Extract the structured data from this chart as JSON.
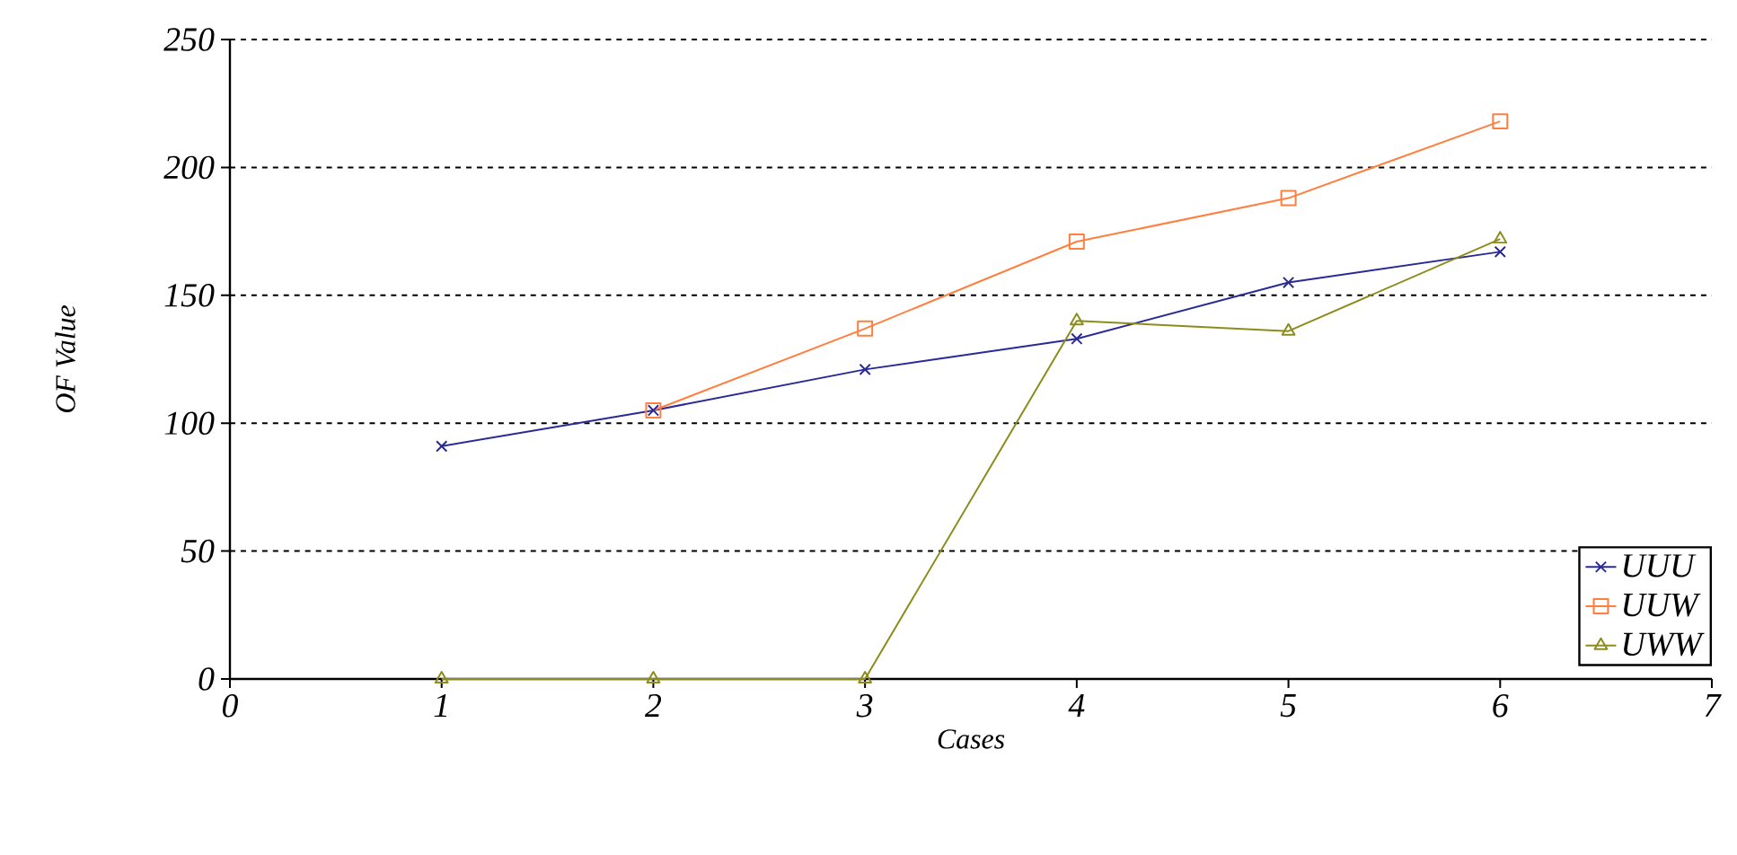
{
  "chart_data": {
    "type": "line",
    "xlabel": "Cases",
    "ylabel": "OF Value",
    "x": [
      1,
      2,
      3,
      4,
      5,
      6
    ],
    "series": [
      {
        "name": "UUU",
        "color": "#2a2a96",
        "marker": "cross",
        "values": [
          91,
          105,
          121,
          133,
          155,
          167
        ]
      },
      {
        "name": "UUW",
        "color": "#ff7f3f",
        "marker": "square",
        "values": [
          null,
          105,
          137,
          171,
          188,
          218
        ]
      },
      {
        "name": "UWW",
        "color": "#8c8c1c",
        "marker": "triangle",
        "values": [
          0,
          0,
          0,
          140,
          136,
          172
        ]
      }
    ],
    "xlim": [
      0,
      7
    ],
    "xticks": [
      0,
      1,
      2,
      3,
      4,
      5,
      6,
      7
    ],
    "ylim": [
      0,
      250
    ],
    "yticks": [
      0,
      50,
      100,
      150,
      200,
      250
    ],
    "grid": "y",
    "legend": "bottom right",
    "line_style": "solid"
  }
}
